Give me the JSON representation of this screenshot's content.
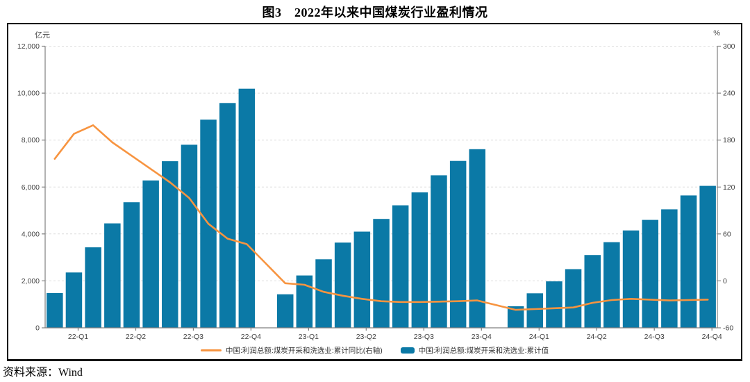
{
  "title": "图3　2022年以来中国煤炭行业盈利情况",
  "source": "资料来源：Wind",
  "colors": {
    "bar": "#0b79a6",
    "line": "#f79440",
    "grid": "#dcdcdc",
    "axis": "#7f7f7f",
    "tick_text": "#404040"
  },
  "chart_data": {
    "type": "combo_bar_line",
    "title": "图3　2022年以来中国煤炭行业盈利情况",
    "slot_count": 35,
    "x_tick_labels": [
      "22-Q1",
      "22-Q2",
      "22-Q3",
      "22-Q4",
      "23-Q1",
      "23-Q2",
      "23-Q3",
      "23-Q4",
      "24-Q1",
      "24-Q2",
      "24-Q3",
      "24-Q4"
    ],
    "x_label_slots": [
      1,
      4,
      7,
      10,
      13,
      16,
      19,
      22,
      25,
      28,
      31,
      34
    ],
    "left_axis": {
      "unit": "亿元",
      "min": 0,
      "max": 12000,
      "step": 2000,
      "tick_labels": [
        "0",
        "2,000",
        "4,000",
        "6,000",
        "8,000",
        "10,000",
        "12,000"
      ]
    },
    "right_axis": {
      "unit": "%",
      "min": -60,
      "max": 300,
      "step": 60,
      "tick_labels": [
        "-60",
        "0",
        "60",
        "120",
        "180",
        "240",
        "300"
      ]
    },
    "legend_position": "bottom-center",
    "grid": {
      "horizontal": true,
      "dashed": true
    },
    "bar_series": {
      "name": "中国:利润总额:煤炭开采和洗选业:累计值",
      "axis": "left",
      "values": [
        1480,
        2360,
        3430,
        4450,
        5350,
        6280,
        7100,
        7800,
        8870,
        9580,
        10190,
        null,
        1430,
        2230,
        2920,
        3630,
        4100,
        4640,
        5220,
        5770,
        6500,
        7110,
        7610,
        null,
        920,
        1470,
        1980,
        2500,
        3100,
        3650,
        4150,
        4600,
        5050,
        5640,
        6050
      ]
    },
    "line_series": {
      "name": "中国:利润总额:煤炭开采和洗选业:累计同比(右轴)",
      "axis": "right",
      "values": [
        156,
        188,
        199,
        177,
        160,
        143,
        126,
        106,
        73,
        54,
        47,
        null,
        -3,
        -5,
        -14,
        -19,
        -23,
        -26,
        -27,
        -27,
        -26.5,
        -26,
        -25,
        null,
        -37,
        -36,
        -35,
        -34,
        -28,
        -24.5,
        -23,
        -24,
        -25,
        -24.5,
        -24
      ]
    }
  }
}
